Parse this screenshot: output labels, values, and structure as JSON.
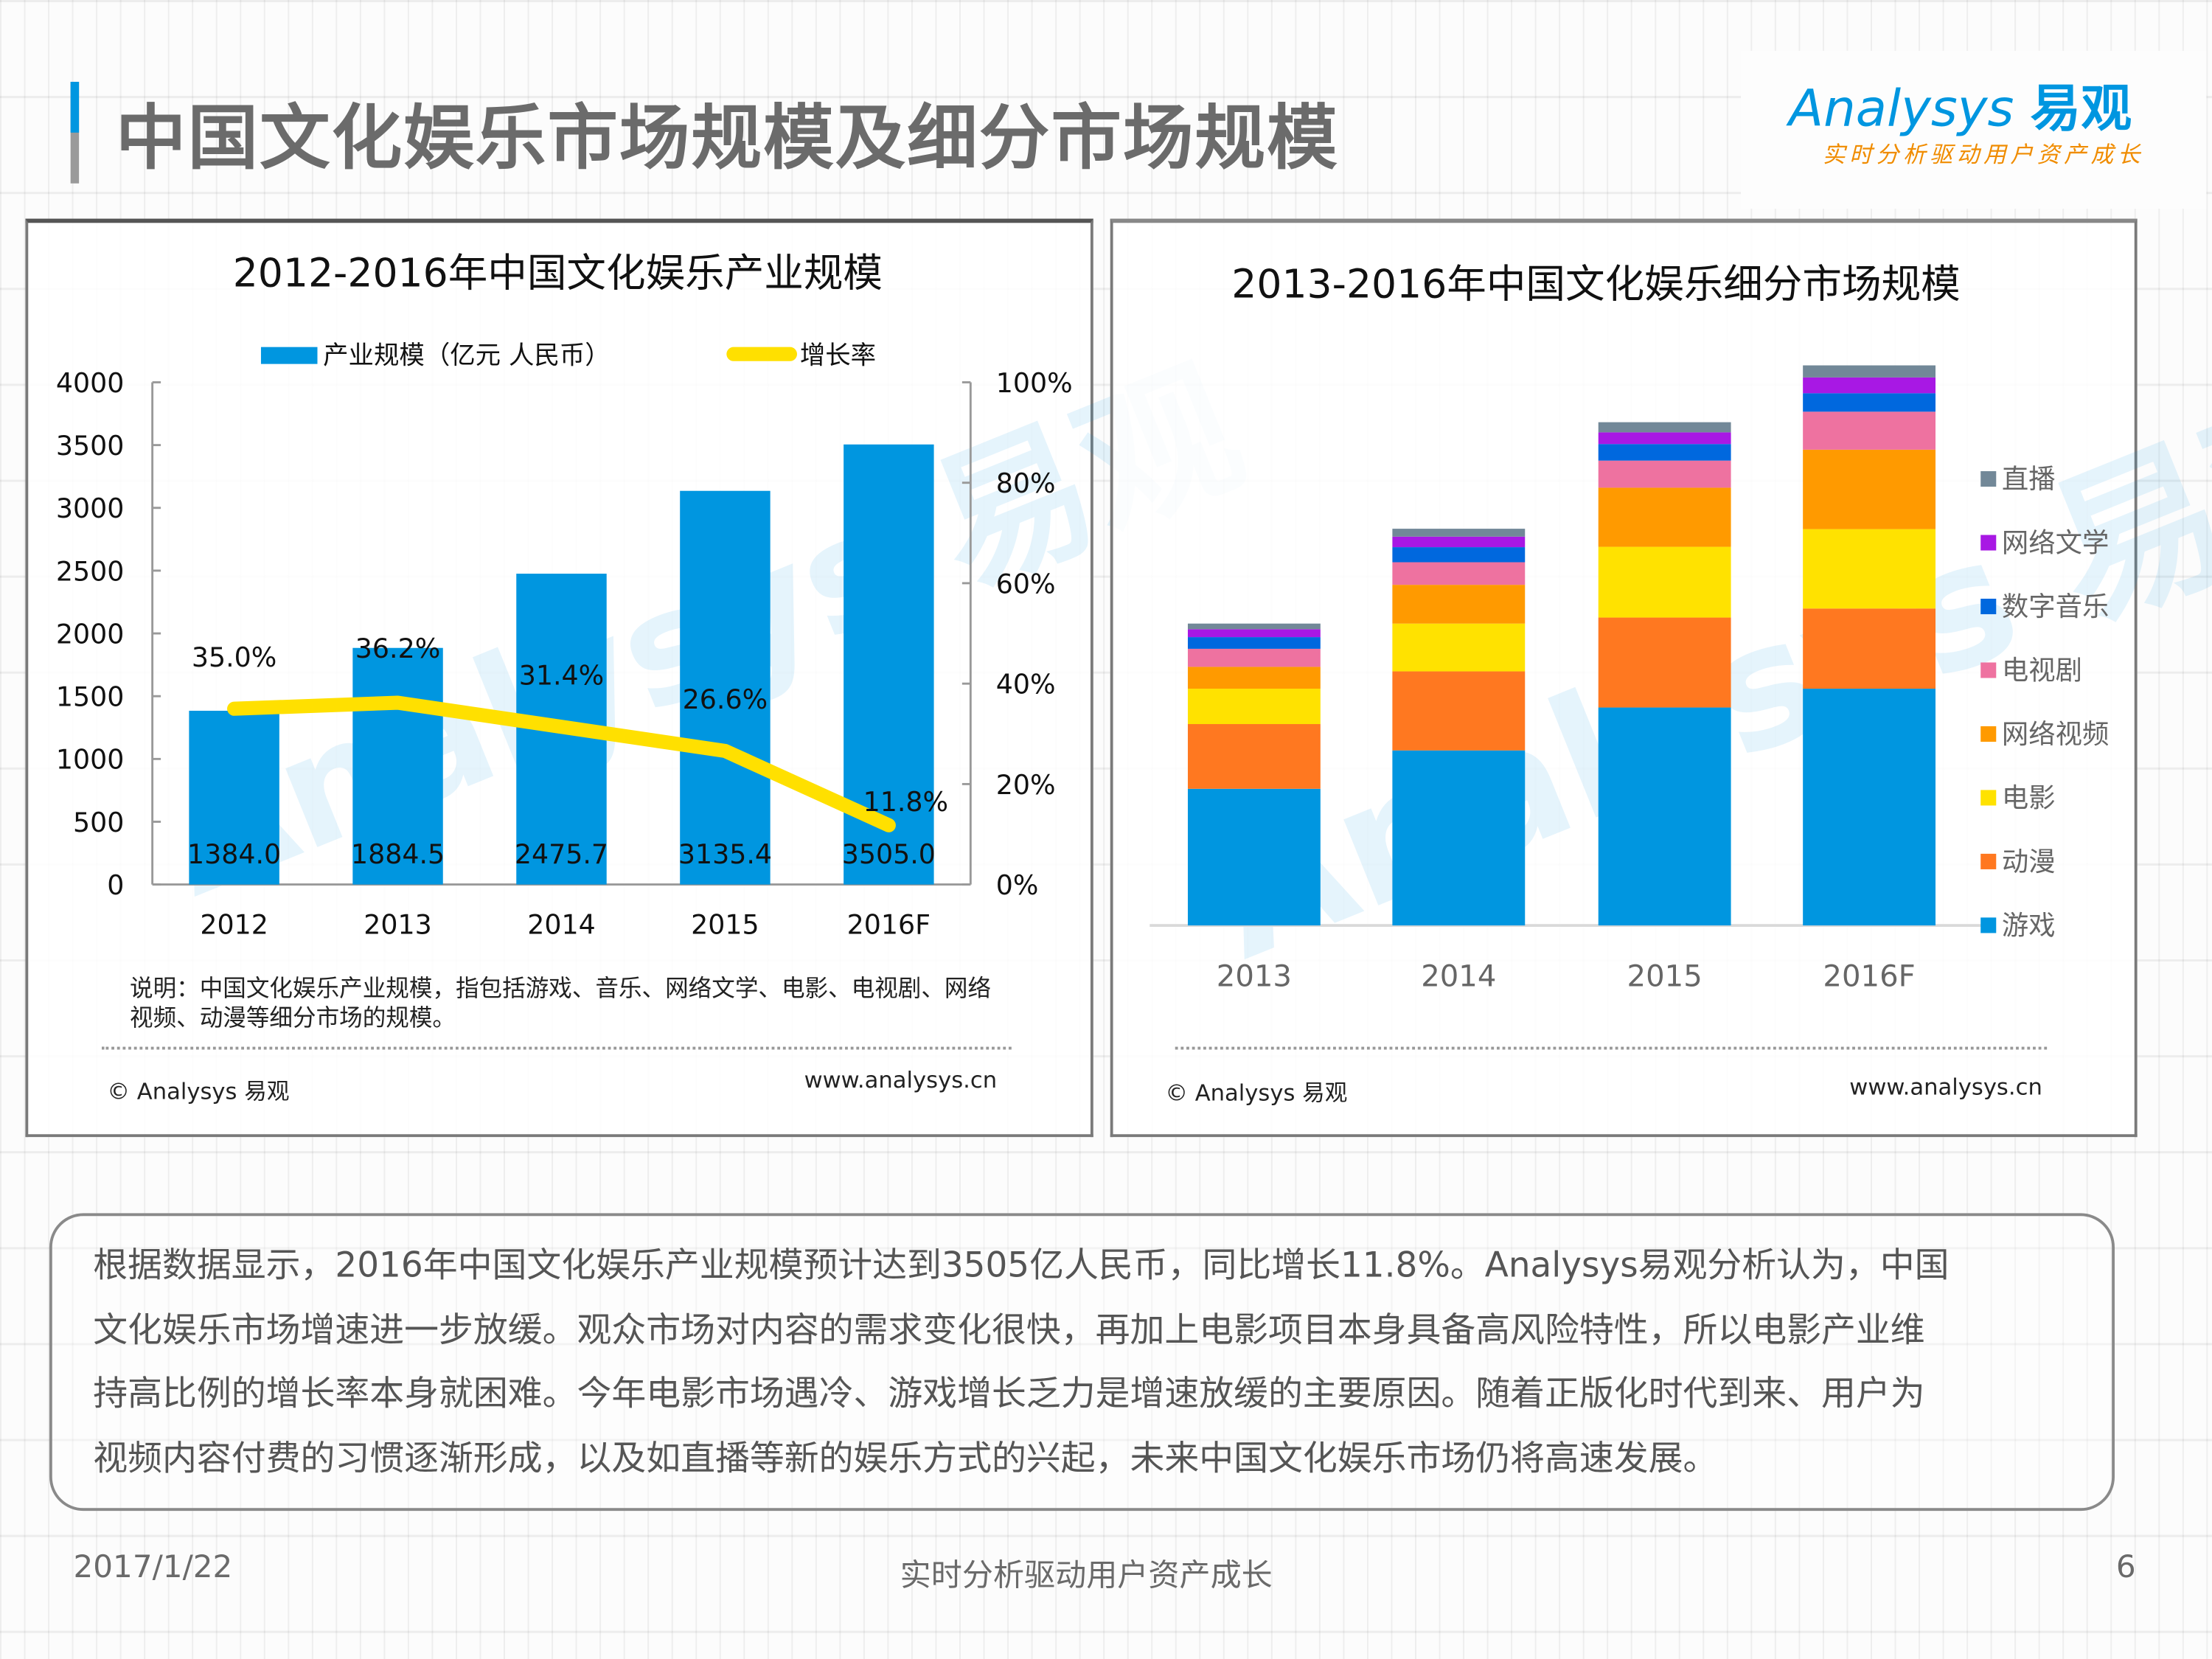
{
  "page": {
    "title": "中国文化娱乐市场规模及细分市场规模",
    "logo": {
      "brand": "Analysys",
      "brand_cn": "易观",
      "tagline": "实时分析驱动用户资产成长"
    },
    "colors": {
      "accent": "#0096e0",
      "title_text": "#6b6b6b",
      "tagline": "#f08c00"
    }
  },
  "left_panel": {
    "note": "说明：中国文化娱乐产业规模，指包括游戏、音乐、网络文学、电影、电视剧、网络视频、动漫等细分市场的规模。",
    "note_line1": "说明：中国文化娱乐产业规模，指包括游戏、音乐、网络文学、电影、电视剧、网络",
    "note_line2": "视频、动漫等细分市场的规模。",
    "copyright": "© Analysys 易观",
    "website": "www.analysys.cn"
  },
  "right_panel": {
    "copyright": "© Analysys 易观",
    "website": "www.analysys.cn"
  },
  "chart_data": [
    {
      "type": "bar",
      "title": "2012-2016年中国文化娱乐产业规模",
      "categories": [
        "2012",
        "2013",
        "2014",
        "2015",
        "2016F"
      ],
      "series": [
        {
          "name": "产业规模（亿元 人民币）",
          "kind": "bar",
          "axis": "left",
          "color": "#0096e0",
          "values": [
            1384.0,
            1884.5,
            2475.7,
            3135.4,
            3505.0
          ],
          "labels": [
            "1384.0",
            "1884.5",
            "2475.7",
            "3135.4",
            "3505.0"
          ]
        },
        {
          "name": "增长率",
          "kind": "line",
          "axis": "right",
          "color": "#ffe000",
          "values": [
            35.0,
            36.2,
            31.4,
            26.6,
            11.8
          ],
          "labels": [
            "35.0%",
            "36.2%",
            "31.4%",
            "26.6%",
            "11.8%"
          ]
        }
      ],
      "ylim": [
        0,
        4000
      ],
      "yticks": [
        "0",
        "500",
        "1000",
        "1500",
        "2000",
        "2500",
        "3000",
        "3500",
        "4000"
      ],
      "y2lim": [
        0,
        100
      ],
      "y2ticks": [
        "0%",
        "20%",
        "40%",
        "60%",
        "80%",
        "100%"
      ],
      "xlabel": "",
      "ylabel": "",
      "legend": "top",
      "grid": false
    },
    {
      "type": "bar",
      "stacked": true,
      "title": "2013-2016年中国文化娱乐细分市场规模",
      "categories": [
        "2013",
        "2014",
        "2015",
        "2016F"
      ],
      "note": "No value axis shown; values are relative estimates read from bar heights",
      "series": [
        {
          "name": "游戏",
          "color": "#0096e0",
          "values": [
            363,
            465,
            579,
            629
          ]
        },
        {
          "name": "动漫",
          "color": "#ff7820",
          "values": [
            172,
            210,
            239,
            213
          ]
        },
        {
          "name": "电影",
          "color": "#ffe200",
          "values": [
            94,
            127,
            188,
            211
          ]
        },
        {
          "name": "网络视频",
          "color": "#ff9a00",
          "values": [
            58,
            103,
            157,
            211
          ]
        },
        {
          "name": "电视剧",
          "color": "#ee72a0",
          "values": [
            48,
            60,
            72,
            101
          ]
        },
        {
          "name": "数字音乐",
          "color": "#0068de",
          "values": [
            31,
            40,
            44,
            49
          ]
        },
        {
          "name": "网络文学",
          "color": "#a818e4",
          "values": [
            21,
            28,
            31,
            42
          ]
        },
        {
          "name": "直播",
          "color": "#728898",
          "values": [
            15,
            21,
            27,
            32
          ]
        }
      ],
      "legend_order": [
        "直播",
        "网络文学",
        "数字音乐",
        "电视剧",
        "网络视频",
        "电影",
        "动漫",
        "游戏"
      ],
      "legend": "right",
      "grid": false,
      "xlabel": "",
      "ylabel": ""
    }
  ],
  "summary": {
    "lines": [
      "根据数据显示，2016年中国文化娱乐产业规模预计达到3505亿人民币，同比增长11.8%。Analysys易观分析认为，中国",
      "文化娱乐市场增速进一步放缓。观众市场对内容的需求变化很快，再加上电影项目本身具备高风险特性，所以电影产业维",
      "持高比例的增长率本身就困难。今年电影市场遇冷、游戏增长乏力是增速放缓的主要原因。随着正版化时代到来、用户为",
      "视频内容付费的习惯逐渐形成，以及如直播等新的娱乐方式的兴起，未来中国文化娱乐市场仍将高速发展。"
    ]
  },
  "footer": {
    "date": "2017/1/22",
    "slogan": "实时分析驱动用户资产成长",
    "page_number": "6"
  }
}
